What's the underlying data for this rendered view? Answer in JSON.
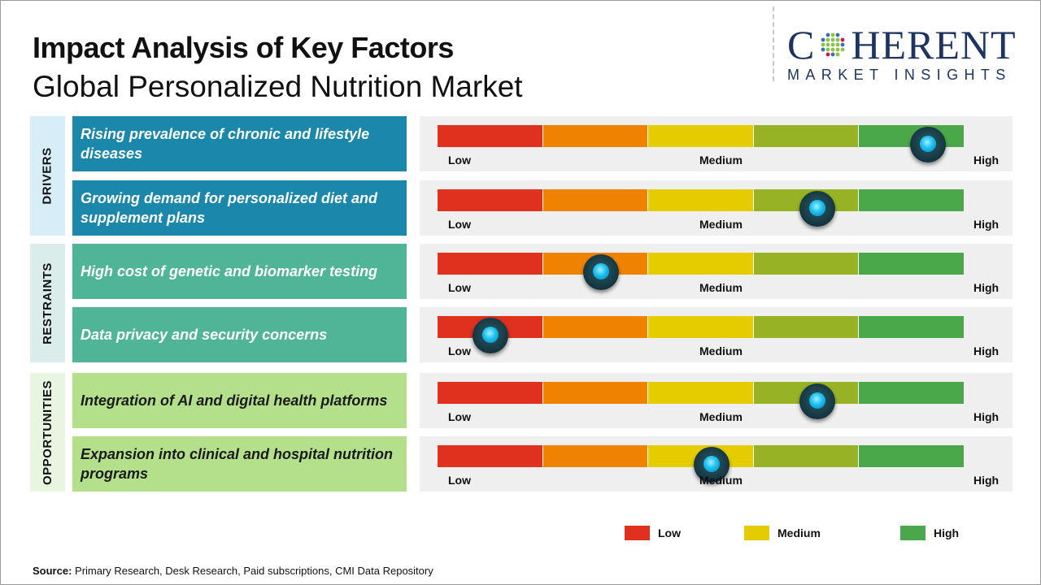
{
  "header": {
    "title": "Impact Analysis of Key Factors",
    "subtitle": "Global Personalized Nutrition Market"
  },
  "logo": {
    "main_left": "C",
    "main_right": "HERENT",
    "sub": "MARKET INSIGHTS"
  },
  "scale_labels": {
    "low": "Low",
    "medium": "Medium",
    "high": "High"
  },
  "colors": {
    "segments": [
      "#e0301e",
      "#ef8200",
      "#e5cc00",
      "#97b224",
      "#4ba84a"
    ],
    "drivers_item": "#1b87aa",
    "drivers_cat": "#d7eef8",
    "restraints_item": "#4fb596",
    "restraints_cat": "#daedeb",
    "opportunities_item": "#b4e08b",
    "opportunities_cat": "#e8f5e0"
  },
  "chart_data": {
    "type": "gauge-bars",
    "scale": [
      "Low",
      "Medium",
      "High"
    ],
    "categories": [
      {
        "name": "DRIVERS",
        "items": [
          {
            "label": "Rising prevalence of chronic and lifestyle diseases",
            "impact": 0.93
          },
          {
            "label": "Growing demand for personalized diet and supplement plans",
            "impact": 0.72
          }
        ]
      },
      {
        "name": "RESTRAINTS",
        "items": [
          {
            "label": "High cost of genetic and biomarker testing",
            "impact": 0.31
          },
          {
            "label": "Data privacy and security concerns",
            "impact": 0.1
          }
        ]
      },
      {
        "name": "OPPORTUNITIES",
        "items": [
          {
            "label": "Integration of AI and digital health platforms",
            "impact": 0.72
          },
          {
            "label": "Expansion into clinical and hospital nutrition programs",
            "impact": 0.52
          }
        ]
      }
    ]
  },
  "legend": [
    {
      "label": "Low",
      "color": "#e0301e"
    },
    {
      "label": "Medium",
      "color": "#e5cc00"
    },
    {
      "label": "High",
      "color": "#4ba84a"
    }
  ],
  "source": {
    "label": "Source:",
    "text": " Primary Research, Desk Research, Paid subscriptions, CMI Data Repository"
  }
}
